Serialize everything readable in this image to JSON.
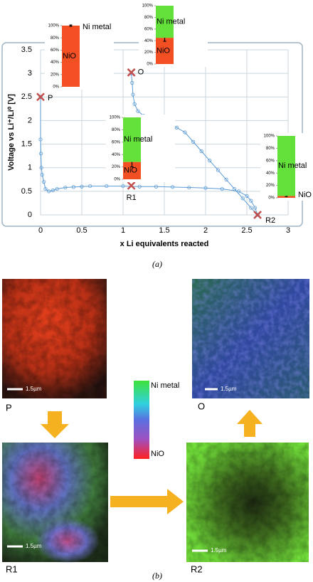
{
  "chart_data": [
    {
      "type": "line",
      "xlabel": "x Li equivalents reacted",
      "ylabel": "Voltage vs Li⁺/Li⁰ [V]",
      "xlim": [
        0,
        3
      ],
      "ylim": [
        0,
        3.5
      ],
      "xticks": [
        0,
        0.5,
        1,
        1.5,
        2,
        2.5,
        3
      ],
      "yticks": [
        0,
        0.5,
        1,
        1.5,
        2,
        2.5,
        3,
        3.5
      ],
      "grid": true,
      "series": [
        {
          "color": "#5b9bd5",
          "x": [
            0,
            0,
            0.005,
            0.01,
            0.02,
            0.04,
            0.06,
            0.1,
            0.15,
            0.2,
            0.3,
            0.4,
            0.5,
            0.6,
            0.8,
            1.0,
            1.2,
            1.4,
            1.6,
            1.8,
            2.0,
            2.2,
            2.4,
            2.5,
            2.55,
            2.6,
            2.63
          ],
          "values": [
            2.5,
            1.6,
            1.3,
            1.0,
            0.85,
            0.7,
            0.55,
            0.5,
            0.52,
            0.55,
            0.58,
            0.59,
            0.6,
            0.61,
            0.61,
            0.61,
            0.6,
            0.6,
            0.59,
            0.58,
            0.57,
            0.55,
            0.5,
            0.4,
            0.3,
            0.15,
            0.0
          ]
        },
        {
          "color": "#5b9bd5",
          "x": [
            2.63,
            2.55,
            2.45,
            2.35,
            2.25,
            2.15,
            2.05,
            1.95,
            1.85,
            1.75,
            1.65,
            1.55,
            1.45,
            1.35,
            1.25,
            1.18,
            1.14,
            1.12,
            1.11,
            1.1
          ],
          "values": [
            0.0,
            0.15,
            0.35,
            0.55,
            0.75,
            0.95,
            1.15,
            1.35,
            1.55,
            1.75,
            1.85,
            1.92,
            1.98,
            2.03,
            2.1,
            2.2,
            2.35,
            2.55,
            2.8,
            3.0
          ]
        }
      ],
      "points": [
        {
          "label": "P",
          "x": 0,
          "y": 2.5
        },
        {
          "label": "O",
          "x": 1.1,
          "y": 3.02
        },
        {
          "label": "R1",
          "x": 1.1,
          "y": 0.62
        },
        {
          "label": "R2",
          "x": 2.63,
          "y": 0
        }
      ],
      "point_color": "#c0504d",
      "caption": "(a)"
    },
    {
      "type": "stacked_bar",
      "ylim": [
        0,
        100
      ],
      "yticks": [
        {
          "value": 0,
          "label": "0%"
        },
        {
          "value": 20,
          "label": "20%"
        },
        {
          "value": 40,
          "label": "40%"
        },
        {
          "value": 60,
          "label": "60%"
        },
        {
          "value": 80,
          "label": "80%"
        },
        {
          "value": 100,
          "label": "100%"
        }
      ],
      "series": [
        {
          "name": "NiO",
          "color": "#f24f23",
          "values": [
            100
          ],
          "errors": [
            1
          ]
        },
        {
          "name": "Ni metal",
          "color": "#63e03a",
          "values": [
            0
          ]
        }
      ]
    },
    {
      "type": "stacked_bar",
      "ylim": [
        0,
        100
      ],
      "yticks": [
        {
          "value": 0,
          "label": "0%"
        },
        {
          "value": 20,
          "label": "20%"
        },
        {
          "value": 40,
          "label": "40%"
        },
        {
          "value": 60,
          "label": "60%"
        },
        {
          "value": 80,
          "label": "80%"
        },
        {
          "value": 100,
          "label": "100%"
        }
      ],
      "series": [
        {
          "name": "NiO",
          "color": "#f24f23",
          "values": [
            45
          ],
          "errors": [
            6
          ]
        },
        {
          "name": "Ni metal",
          "color": "#63e03a",
          "values": [
            55
          ]
        }
      ]
    },
    {
      "type": "stacked_bar",
      "ylim": [
        0,
        100
      ],
      "yticks": [
        {
          "value": 0,
          "label": "0%"
        },
        {
          "value": 20,
          "label": "20%"
        },
        {
          "value": 40,
          "label": "40%"
        },
        {
          "value": 60,
          "label": "60%"
        },
        {
          "value": 80,
          "label": "80%"
        },
        {
          "value": 100,
          "label": "100%"
        }
      ],
      "series": [
        {
          "name": "NiO",
          "color": "#f24f23",
          "values": [
            28
          ],
          "errors": [
            8
          ]
        },
        {
          "name": "Ni metal",
          "color": "#63e03a",
          "values": [
            72
          ]
        }
      ]
    },
    {
      "type": "stacked_bar",
      "ylim": [
        0,
        100
      ],
      "yticks": [
        {
          "value": 0,
          "label": "0%"
        },
        {
          "value": 20,
          "label": "20%"
        },
        {
          "value": 40,
          "label": "40%"
        },
        {
          "value": 60,
          "label": "60%"
        },
        {
          "value": 80,
          "label": "80%"
        },
        {
          "value": 100,
          "label": "100%"
        }
      ],
      "series": [
        {
          "name": "NiO",
          "color": "#f24f23",
          "values": [
            3
          ],
          "errors": [
            1
          ]
        },
        {
          "name": "Ni metal",
          "color": "#63e03a",
          "values": [
            97
          ]
        }
      ]
    }
  ],
  "figure_b": {
    "panels": [
      {
        "label": "P",
        "scale": "1.5µm"
      },
      {
        "label": "O",
        "scale": "1.5µm"
      },
      {
        "label": "R1",
        "scale": "1.5µm"
      },
      {
        "label": "R2",
        "scale": "1.5µm"
      }
    ],
    "colorbar": {
      "top": "Ni metal",
      "bottom": "NiO"
    },
    "caption": "(b)"
  }
}
